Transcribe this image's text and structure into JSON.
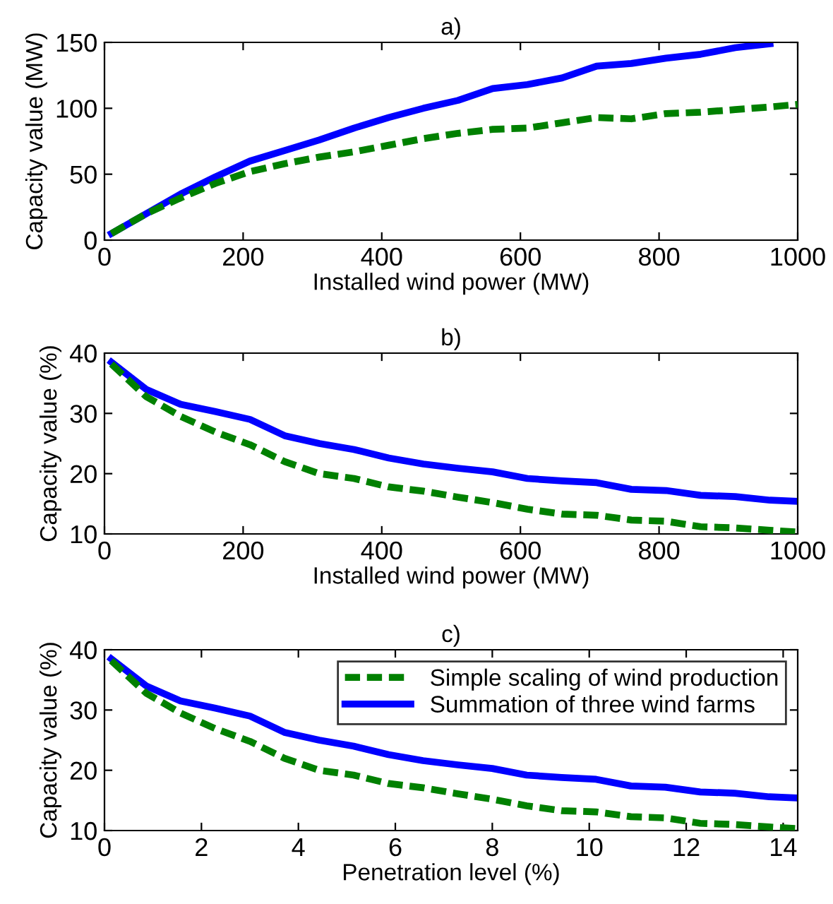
{
  "chart_data": [
    {
      "type": "line",
      "title": "a)",
      "xlabel": "Installed wind power (MW)",
      "ylabel": "Capacity value (MW)",
      "xlim": [
        0,
        1000
      ],
      "xticks": [
        0,
        200,
        400,
        600,
        800,
        1000
      ],
      "ylim": [
        0,
        150
      ],
      "yticks": [
        0,
        50,
        100,
        150
      ],
      "grid": false,
      "legend": false,
      "series": [
        {
          "color": "#008000",
          "line_style": "dashed",
          "x": [
            10,
            60,
            110,
            160,
            210,
            260,
            310,
            360,
            410,
            460,
            510,
            560,
            610,
            660,
            710,
            760,
            810,
            860,
            910,
            960,
            1000
          ],
          "values": [
            5,
            20,
            32,
            43,
            52,
            58,
            63,
            67,
            72,
            77,
            81,
            84,
            85,
            89,
            93,
            92,
            96,
            97,
            99,
            101,
            103
          ]
        },
        {
          "color": "#0000ff",
          "line_style": "solid",
          "x": [
            10,
            60,
            110,
            160,
            210,
            260,
            310,
            360,
            410,
            460,
            510,
            560,
            610,
            660,
            710,
            760,
            810,
            860,
            910,
            960
          ],
          "values": [
            5,
            20,
            35,
            48,
            60,
            68,
            76,
            85,
            93,
            100,
            106,
            115,
            118,
            123,
            132,
            134,
            138,
            141,
            146,
            149
          ]
        }
      ]
    },
    {
      "type": "line",
      "title": "b)",
      "xlabel": "Installed wind power (MW)",
      "ylabel": "Capacity value (%)",
      "xlim": [
        0,
        1000
      ],
      "xticks": [
        0,
        200,
        400,
        600,
        800,
        1000
      ],
      "ylim": [
        10,
        40
      ],
      "yticks": [
        10,
        20,
        30,
        40
      ],
      "grid": false,
      "legend": false,
      "series": [
        {
          "color": "#008000",
          "line_style": "dashed",
          "x": [
            10,
            60,
            110,
            160,
            210,
            260,
            310,
            360,
            410,
            460,
            510,
            560,
            610,
            660,
            710,
            760,
            810,
            860,
            910,
            960,
            1000
          ],
          "values": [
            38.2,
            32.8,
            29.5,
            26.9,
            24.8,
            22,
            20,
            19.2,
            17.8,
            17.1,
            16.1,
            15.2,
            14.1,
            13.3,
            13.1,
            12.3,
            12.1,
            11.2,
            11,
            10.6,
            10.3
          ]
        },
        {
          "color": "#0000ff",
          "line_style": "solid",
          "x": [
            10,
            60,
            110,
            160,
            210,
            260,
            310,
            360,
            410,
            460,
            510,
            560,
            610,
            660,
            710,
            760,
            810,
            860,
            910,
            960,
            1000
          ],
          "values": [
            38.5,
            34,
            31.5,
            30.3,
            29,
            26.3,
            25,
            24,
            22.6,
            21.6,
            20.9,
            20.3,
            19.2,
            18.8,
            18.5,
            17.4,
            17.2,
            16.4,
            16.2,
            15.6,
            15.4
          ]
        }
      ]
    },
    {
      "type": "line",
      "title": "c)",
      "xlabel": "Penetration level (%)",
      "ylabel": "Capacity value (%)",
      "xlim": [
        0,
        14.3
      ],
      "xticks": [
        0,
        2,
        4,
        6,
        8,
        10,
        12,
        14
      ],
      "ylim": [
        10,
        40
      ],
      "yticks": [
        10,
        20,
        30,
        40
      ],
      "grid": false,
      "legend": "top right",
      "series": [
        {
          "name": "Simple scaling of wind production",
          "color": "#008000",
          "line_style": "dashed",
          "x": [
            0.14,
            0.86,
            1.57,
            2.29,
            3.0,
            3.71,
            4.43,
            5.14,
            5.86,
            6.57,
            7.29,
            8.0,
            8.71,
            9.43,
            10.14,
            10.86,
            11.57,
            12.29,
            13.0,
            13.71,
            14.3
          ],
          "values": [
            38.2,
            32.8,
            29.5,
            26.9,
            24.8,
            22,
            20,
            19.2,
            17.8,
            17.1,
            16.1,
            15.2,
            14.1,
            13.3,
            13.1,
            12.3,
            12.1,
            11.2,
            11,
            10.6,
            10.3
          ]
        },
        {
          "name": "Summation of three wind farms",
          "color": "#0000ff",
          "line_style": "solid",
          "x": [
            0.14,
            0.86,
            1.57,
            2.29,
            3.0,
            3.71,
            4.43,
            5.14,
            5.86,
            6.57,
            7.29,
            8.0,
            8.71,
            9.43,
            10.14,
            10.86,
            11.57,
            12.29,
            13.0,
            13.71,
            14.3
          ],
          "values": [
            38.5,
            34,
            31.5,
            30.3,
            29,
            26.3,
            25,
            24,
            22.6,
            21.6,
            20.9,
            20.3,
            19.2,
            18.8,
            18.5,
            17.4,
            17.2,
            16.4,
            16.2,
            15.6,
            15.4
          ]
        }
      ]
    }
  ]
}
